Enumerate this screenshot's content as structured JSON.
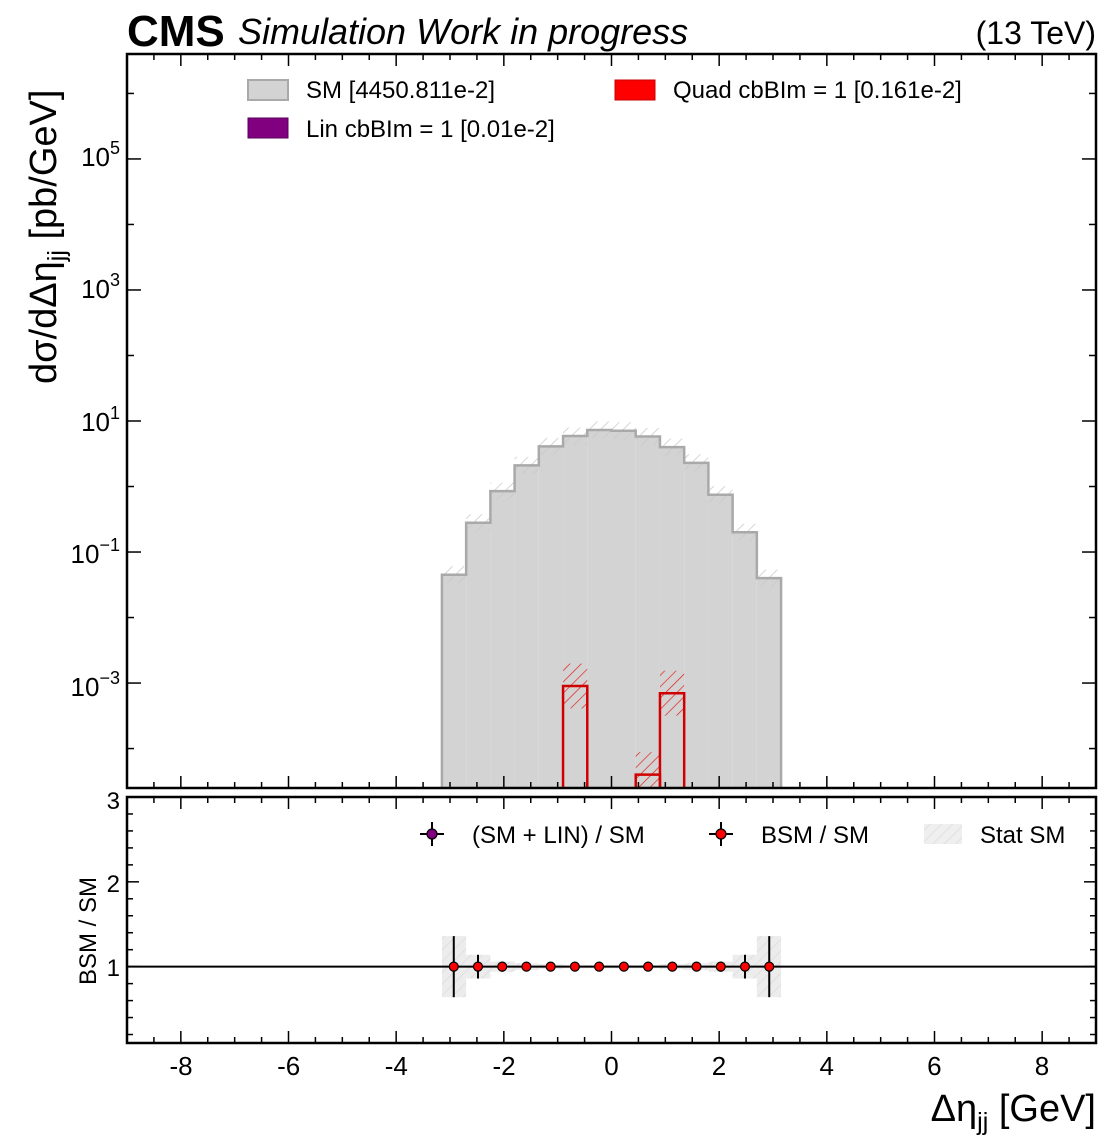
{
  "header": {
    "brand": "CMS",
    "subtitle": "Simulation Work in progress",
    "energy": "(13 TeV)"
  },
  "top_axis": {
    "ylabel": "dσ/dΔη",
    "ylabel_sub": "jj",
    "ylabel_unit": " [pb/GeV]",
    "yticks": [
      {
        "base": "10",
        "exp": "5",
        "value": 100000
      },
      {
        "base": "10",
        "exp": "3",
        "value": 1000
      },
      {
        "base": "10",
        "exp": "1",
        "value": 10
      },
      {
        "base": "10",
        "exp": "−1",
        "value": 0.1
      },
      {
        "base": "10",
        "exp": "−3",
        "value": 0.001
      }
    ]
  },
  "legend_top": {
    "sm": "SM [4450.811e-2]",
    "quad": "Quad cbBIm = 1 [0.161e-2]",
    "lin": "Lin cbBIm = 1 [0.01e-2]"
  },
  "bottom_axis": {
    "ylabel": "BSM / SM",
    "yticks": [
      "1",
      "2",
      "3"
    ],
    "xticks": [
      "-8",
      "-6",
      "-4",
      "-2",
      "0",
      "2",
      "4",
      "6",
      "8"
    ],
    "xlabel": "Δη",
    "xlabel_sub": "jj",
    "xlabel_unit": " [GeV]"
  },
  "legend_bottom": {
    "lin_ratio": "(SM + LIN) / SM",
    "bsm_ratio": "BSM / SM",
    "stat": "Stat SM"
  },
  "colors": {
    "sm_fill": "#d3d3d3",
    "sm_edge": "#a9a9a9",
    "quad": "#ff0000",
    "lin": "#800080",
    "axes": "#000000"
  },
  "chart_data": [
    {
      "type": "bar",
      "panel": "main",
      "log_y": true,
      "xlim": [
        -9,
        9
      ],
      "ylim": [
        2.5e-05,
        4000000.0
      ],
      "bin_edges": [
        -3.15,
        -2.7,
        -2.25,
        -1.8,
        -1.35,
        -0.9,
        -0.45,
        0.0,
        0.45,
        0.9,
        1.35,
        1.8,
        2.25,
        2.7,
        3.15
      ],
      "series": [
        {
          "name": "SM [4450.811e-2]",
          "values": [
            0.045,
            0.28,
            0.85,
            2.1,
            4.1,
            5.9,
            7.3,
            7.1,
            5.8,
            4.0,
            2.3,
            0.75,
            0.2,
            0.04
          ]
        },
        {
          "name": "Quad cbBIm = 1 [0.161e-2]",
          "values": [
            0,
            0,
            0,
            0,
            0,
            0.0009,
            0,
            0,
            4e-05,
            0.0007,
            0,
            0,
            0,
            0
          ]
        },
        {
          "name": "Lin cbBIm = 1 [0.01e-2]",
          "values": [
            0,
            0,
            0,
            0,
            0,
            0,
            0,
            0,
            0,
            0,
            0,
            0,
            0,
            0
          ]
        }
      ]
    },
    {
      "type": "scatter",
      "panel": "ratio",
      "xlim": [
        -9,
        9
      ],
      "ylim": [
        0.1,
        3
      ],
      "ylabel": "BSM / SM",
      "xlabel": "Δηjj [GeV]",
      "x": [
        -2.93,
        -2.48,
        -2.03,
        -1.58,
        -1.13,
        -0.68,
        -0.23,
        0.23,
        0.68,
        1.13,
        1.58,
        2.03,
        2.48,
        2.93
      ],
      "series": [
        {
          "name": "BSM / SM",
          "values": [
            1,
            1,
            1,
            1,
            1,
            1,
            1,
            1,
            1,
            1,
            1,
            1,
            1,
            1
          ],
          "errors": [
            0.36,
            0.14,
            0.06,
            0.04,
            0.03,
            0.02,
            0.02,
            0.02,
            0.02,
            0.03,
            0.04,
            0.06,
            0.14,
            0.36
          ]
        },
        {
          "name": "Stat SM",
          "values": [
            1,
            1,
            1,
            1,
            1,
            1,
            1,
            1,
            1,
            1,
            1,
            1,
            1,
            1
          ],
          "errors": [
            0.36,
            0.14,
            0.06,
            0.04,
            0.03,
            0.02,
            0.02,
            0.02,
            0.02,
            0.03,
            0.04,
            0.06,
            0.14,
            0.36
          ]
        }
      ]
    }
  ]
}
